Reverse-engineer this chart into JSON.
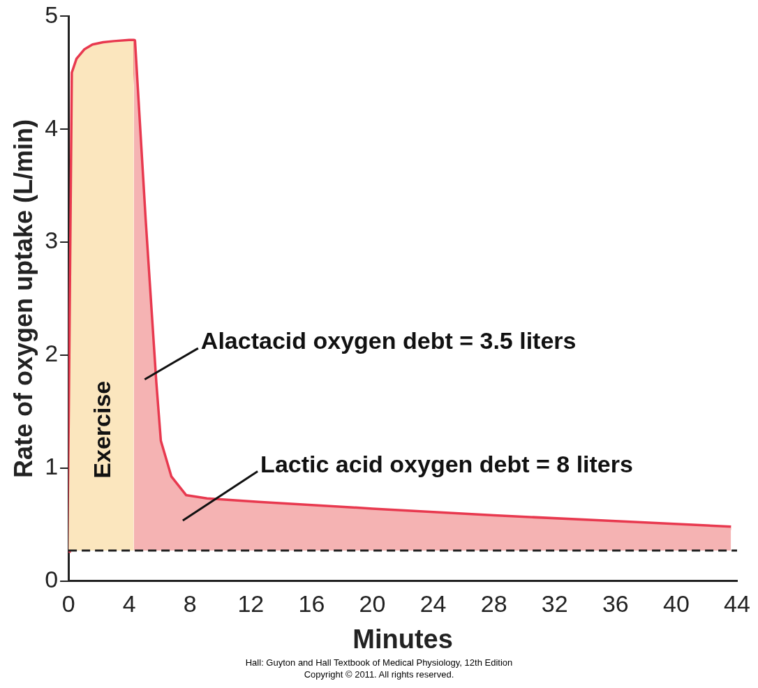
{
  "chart_data": {
    "type": "line",
    "xlabel": "Minutes",
    "ylabel": "Rate of oxygen uptake (L/min)",
    "xlim": [
      0,
      44
    ],
    "xticks": [
      0,
      4,
      8,
      12,
      16,
      20,
      24,
      28,
      32,
      36,
      40,
      44
    ],
    "ylim": [
      0,
      5
    ],
    "yticks": [
      0,
      1,
      2,
      3,
      4,
      5
    ],
    "grid": false,
    "legend": false,
    "marker": "none",
    "series": [
      {
        "type": "area",
        "color": "#fbe6be",
        "x": [
          0,
          0.1,
          0.3,
          0.6,
          1.1,
          1.6,
          2.3,
          3.0,
          4.0,
          4.3
        ],
        "values": [
          0.25,
          1.5,
          4.5,
          4.62,
          4.7,
          4.74,
          4.76,
          4.77,
          4.78,
          4.78
        ]
      },
      {
        "type": "area",
        "color": "#f5b3b3",
        "x": [
          4.3,
          5.0,
          5.7,
          6.0,
          6.7,
          7.7,
          9.1,
          12.5,
          20,
          28,
          36,
          43.6
        ],
        "values": [
          4.78,
          3.2,
          1.76,
          1.24,
          0.92,
          0.75,
          0.72,
          0.69,
          0.63,
          0.57,
          0.52,
          0.47
        ]
      },
      {
        "color": "#e8394f",
        "x": [
          0,
          0.1,
          0.3,
          0.6,
          1.1,
          1.6,
          2.3,
          3.0,
          4.0,
          4.3,
          5.0,
          5.7,
          6.0,
          6.7,
          7.7,
          9.1,
          12.5,
          20,
          28,
          36,
          43.6
        ],
        "values": [
          0.25,
          1.5,
          4.5,
          4.62,
          4.7,
          4.74,
          4.76,
          4.77,
          4.78,
          4.78,
          3.2,
          1.76,
          1.24,
          0.92,
          0.75,
          0.72,
          0.69,
          0.63,
          0.57,
          0.52,
          0.47
        ]
      }
    ],
    "ref_lines": [
      {
        "axis": "y",
        "value": 0.27,
        "line_style": "dashed",
        "color": "#222222"
      }
    ],
    "annotations": [
      "Exercise",
      "Alactacid oxygen debt = 3.5 liters",
      "Lactic acid oxygen debt = 8 liters",
      "Hall: Guyton and Hall Textbook of Medical Physiology, 12th Edition",
      "Copyright © 2011. All rights reserved."
    ]
  }
}
